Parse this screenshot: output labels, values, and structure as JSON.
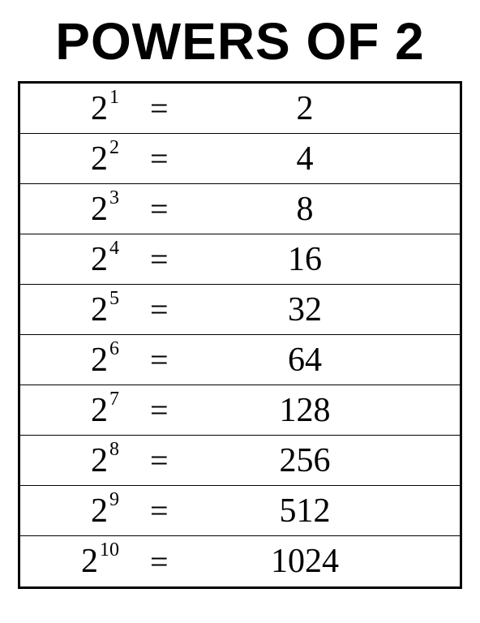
{
  "title": "POWERS OF 2",
  "base": "2",
  "equals": "=",
  "rows": [
    {
      "exp": "1",
      "value": "2"
    },
    {
      "exp": "2",
      "value": "4"
    },
    {
      "exp": "3",
      "value": "8"
    },
    {
      "exp": "4",
      "value": "16"
    },
    {
      "exp": "5",
      "value": "32"
    },
    {
      "exp": "6",
      "value": "64"
    },
    {
      "exp": "7",
      "value": "128"
    },
    {
      "exp": "8",
      "value": "256"
    },
    {
      "exp": "9",
      "value": "512"
    },
    {
      "exp": "10",
      "value": "1024"
    }
  ],
  "colors": {
    "background": "#ffffff",
    "text": "#000000",
    "border": "#000000"
  }
}
